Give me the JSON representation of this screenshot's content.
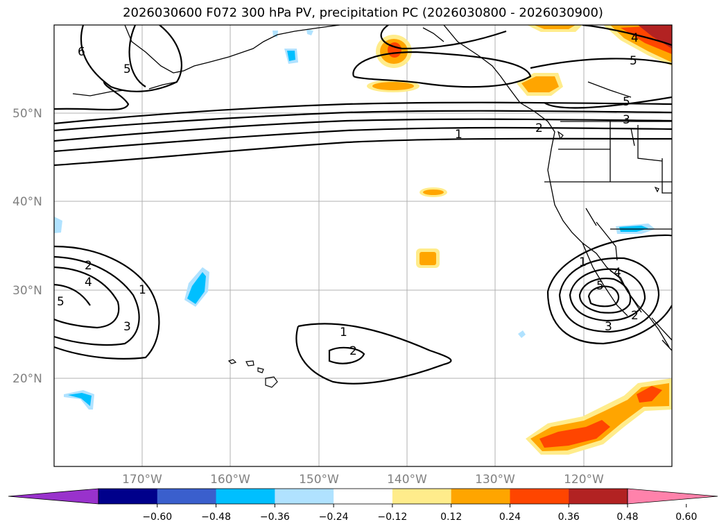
{
  "title": "2026030600 F072 300 hPa PV, precipitation PC (2026030800 - 2026030900)",
  "map": {
    "lat_labels": [
      "50°N",
      "40°N",
      "30°N",
      "20°N"
    ],
    "lon_labels": [
      "170°W",
      "160°W",
      "150°W",
      "140°W",
      "130°W",
      "120°W"
    ],
    "contour_labels": [
      "1",
      "2",
      "3",
      "4",
      "5",
      "6"
    ]
  },
  "colorbar": {
    "ticks": [
      "−0.60",
      "−0.48",
      "−0.36",
      "−0.24",
      "−0.12",
      "0.12",
      "0.24",
      "0.36",
      "0.48",
      "0.60"
    ],
    "colors": [
      "#9932cc",
      "#00008b",
      "#3a5fcd",
      "#00bfff",
      "#b0e2ff",
      "#ffffff",
      "#ffec8b",
      "#ffa500",
      "#ff4500",
      "#b22222",
      "#ff82ab"
    ]
  }
}
